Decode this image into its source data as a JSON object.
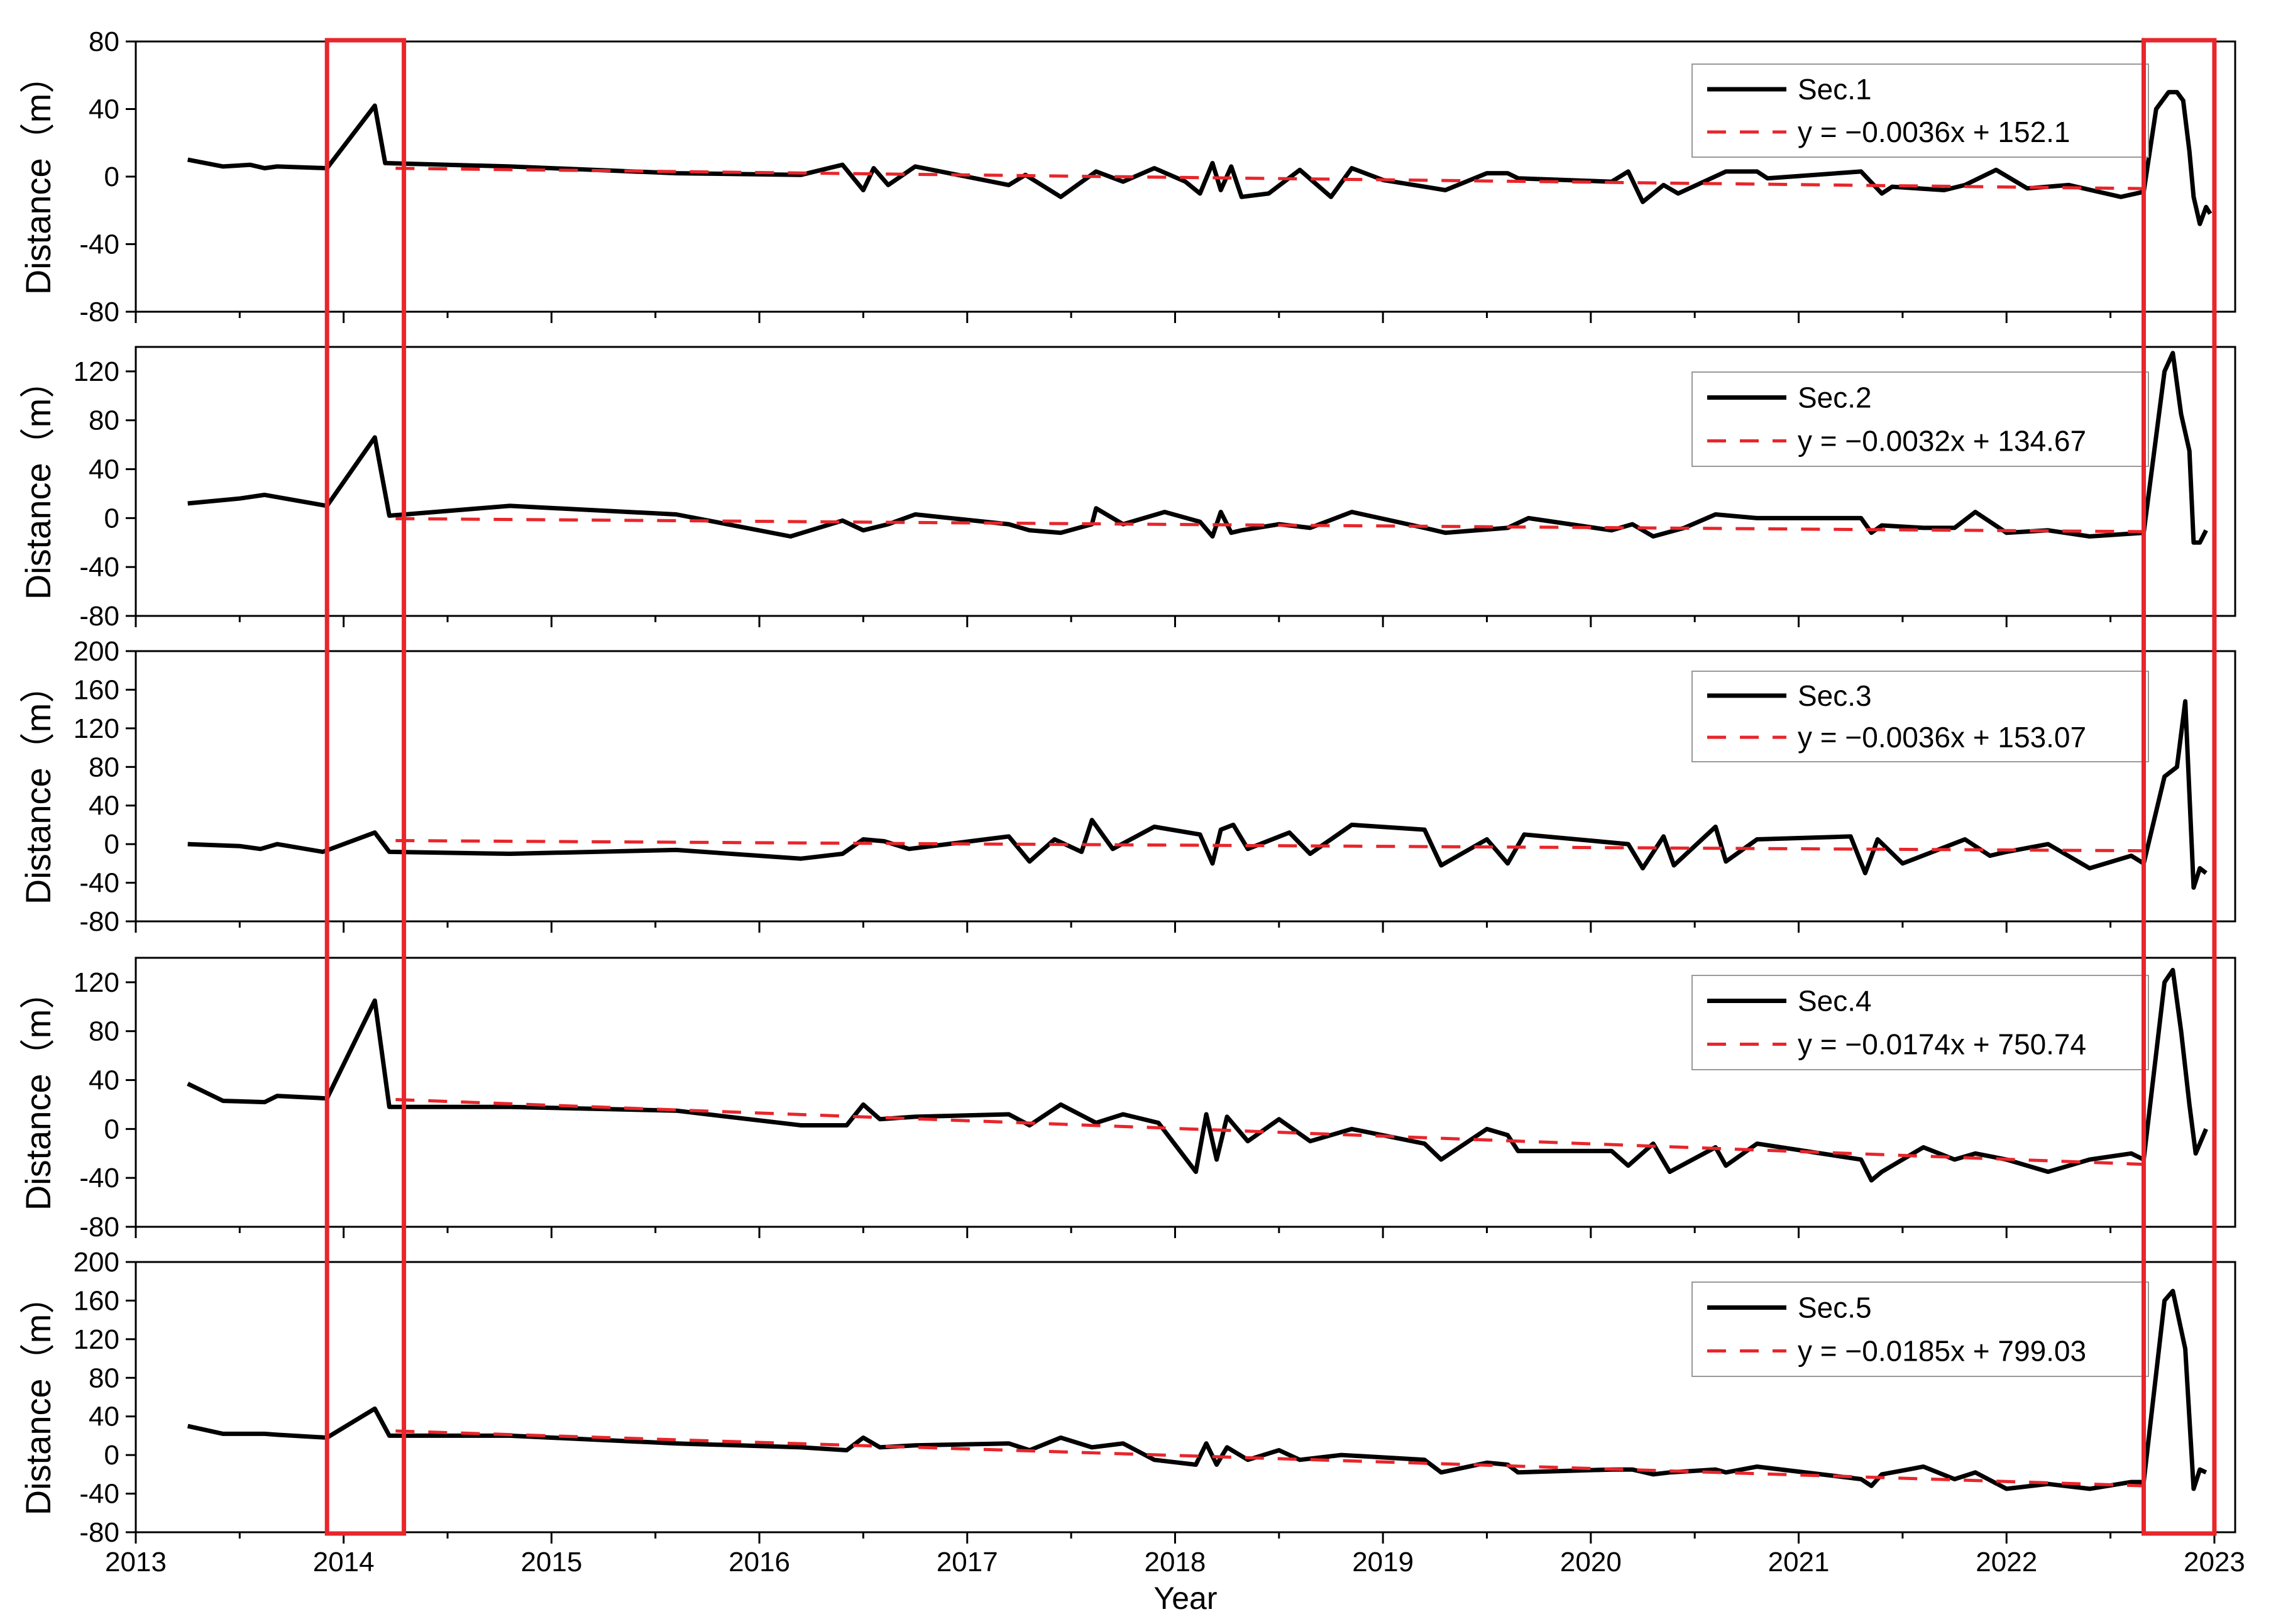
{
  "figure": {
    "xlabel": "Year",
    "ylabel": "Distance（m）",
    "highlight_color": "#e8262b",
    "line_color": "#000000",
    "trend_color": "#e8262b",
    "highlight_windows": [
      [
        2013.92,
        2014.29
      ],
      [
        2022.66,
        2023.0
      ]
    ]
  },
  "chart_data": [
    {
      "type": "line",
      "panel": 1,
      "xlim": [
        2013,
        2023.1
      ],
      "xticks": [
        "2013",
        "2014",
        "2015",
        "2016",
        "2017",
        "2018",
        "2019",
        "2020",
        "2021",
        "2022",
        "2023"
      ],
      "ylim": [
        -80,
        80
      ],
      "yticks": [
        "-80",
        "-40",
        "0",
        "40",
        "80"
      ],
      "grid": false,
      "legend_position": "top-right",
      "series": [
        {
          "name": "Sec.1",
          "style": "solid",
          "x": [
            2013.25,
            2013.42,
            2013.55,
            2013.62,
            2013.68,
            2013.92,
            2014.15,
            2014.2,
            2014.8,
            2015.6,
            2016.2,
            2016.4,
            2016.5,
            2016.55,
            2016.62,
            2016.75,
            2017.2,
            2017.28,
            2017.45,
            2017.62,
            2017.75,
            2017.9,
            2018.05,
            2018.12,
            2018.18,
            2018.22,
            2018.27,
            2018.32,
            2018.45,
            2018.6,
            2018.75,
            2018.85,
            2019.0,
            2019.2,
            2019.3,
            2019.5,
            2019.6,
            2019.65,
            2020.1,
            2020.18,
            2020.25,
            2020.35,
            2020.42,
            2020.65,
            2020.8,
            2020.85,
            2021.3,
            2021.4,
            2021.45,
            2021.7,
            2021.8,
            2021.95,
            2022.1,
            2022.3,
            2022.55,
            2022.66,
            2022.72,
            2022.78,
            2022.82,
            2022.85,
            2022.88,
            2022.9,
            2022.93,
            2022.96,
            2022.98
          ],
          "y": [
            10,
            6,
            7,
            5,
            6,
            5,
            42,
            8,
            6,
            2,
            1,
            7,
            -8,
            5,
            -5,
            6,
            -5,
            1,
            -12,
            3,
            -3,
            5,
            -3,
            -10,
            8,
            -8,
            6,
            -12,
            -10,
            4,
            -12,
            5,
            -2,
            -6,
            -8,
            2,
            2,
            -1,
            -3,
            3,
            -15,
            -5,
            -10,
            3,
            3,
            -1,
            3,
            -10,
            -6,
            -8,
            -5,
            4,
            -7,
            -5,
            -12,
            -9,
            40,
            50,
            50,
            45,
            15,
            -12,
            -28,
            -18,
            -22
          ]
        },
        {
          "name": "y = −0.0036x + 152.1",
          "style": "dashed",
          "x": [
            2014.25,
            2022.66
          ],
          "y": [
            4.9,
            -7.1
          ]
        }
      ]
    },
    {
      "type": "line",
      "panel": 2,
      "xlim": [
        2013,
        2023.1
      ],
      "xticks": [
        "2013",
        "2014",
        "2015",
        "2016",
        "2017",
        "2018",
        "2019",
        "2020",
        "2021",
        "2022",
        "2023"
      ],
      "ylim": [
        -80,
        140
      ],
      "yticks": [
        "-80",
        "-40",
        "0",
        "40",
        "80",
        "120"
      ],
      "grid": false,
      "legend_position": "top-right",
      "series": [
        {
          "name": "Sec.2",
          "style": "solid",
          "x": [
            2013.25,
            2013.5,
            2013.62,
            2013.92,
            2014.15,
            2014.22,
            2014.8,
            2015.6,
            2016.15,
            2016.4,
            2016.5,
            2016.62,
            2016.75,
            2017.2,
            2017.3,
            2017.45,
            2017.6,
            2017.62,
            2017.75,
            2017.95,
            2018.12,
            2018.18,
            2018.22,
            2018.27,
            2018.32,
            2018.5,
            2018.65,
            2018.85,
            2019.2,
            2019.3,
            2019.6,
            2019.7,
            2020.1,
            2020.2,
            2020.3,
            2020.45,
            2020.6,
            2020.8,
            2021.3,
            2021.35,
            2021.4,
            2021.6,
            2021.75,
            2021.85,
            2022.0,
            2022.2,
            2022.4,
            2022.66,
            2022.76,
            2022.8,
            2022.84,
            2022.88,
            2022.9,
            2022.93,
            2022.96
          ],
          "y": [
            12,
            16,
            19,
            10,
            66,
            2,
            10,
            3,
            -15,
            -2,
            -10,
            -5,
            3,
            -5,
            -10,
            -12,
            -5,
            8,
            -5,
            5,
            -3,
            -15,
            5,
            -12,
            -10,
            -5,
            -8,
            5,
            -8,
            -12,
            -8,
            0,
            -10,
            -5,
            -15,
            -8,
            3,
            0,
            0,
            -12,
            -6,
            -8,
            -8,
            5,
            -12,
            -10,
            -15,
            -12,
            120,
            135,
            85,
            55,
            -20,
            -20,
            -10
          ]
        },
        {
          "name": "y = −0.0032x + 134.67",
          "style": "dashed",
          "x": [
            2014.25,
            2022.66
          ],
          "y": [
            -0.42,
            -11.08
          ]
        }
      ]
    },
    {
      "type": "line",
      "panel": 3,
      "xlim": [
        2013,
        2023.1
      ],
      "xticks": [
        "2013",
        "2014",
        "2015",
        "2016",
        "2017",
        "2018",
        "2019",
        "2020",
        "2021",
        "2022",
        "2023"
      ],
      "ylim": [
        -80,
        200
      ],
      "yticks": [
        "-80",
        "-40",
        "0",
        "40",
        "80",
        "120",
        "160",
        "200"
      ],
      "grid": false,
      "legend_position": "top-right",
      "series": [
        {
          "name": "Sec.3",
          "style": "solid",
          "x": [
            2013.25,
            2013.5,
            2013.6,
            2013.68,
            2013.9,
            2014.15,
            2014.22,
            2014.8,
            2015.6,
            2016.2,
            2016.4,
            2016.5,
            2016.6,
            2016.72,
            2017.2,
            2017.3,
            2017.42,
            2017.55,
            2017.6,
            2017.7,
            2017.9,
            2018.12,
            2018.18,
            2018.22,
            2018.28,
            2018.35,
            2018.55,
            2018.65,
            2018.85,
            2019.2,
            2019.28,
            2019.5,
            2019.6,
            2019.68,
            2020.18,
            2020.25,
            2020.35,
            2020.4,
            2020.6,
            2020.65,
            2020.8,
            2021.25,
            2021.32,
            2021.38,
            2021.5,
            2021.8,
            2021.92,
            2022.0,
            2022.2,
            2022.4,
            2022.6,
            2022.66,
            2022.76,
            2022.82,
            2022.86,
            2022.9,
            2022.93,
            2022.96
          ],
          "y": [
            0,
            -2,
            -5,
            0,
            -8,
            12,
            -8,
            -10,
            -6,
            -15,
            -10,
            5,
            3,
            -5,
            8,
            -18,
            5,
            -8,
            25,
            -5,
            18,
            10,
            -20,
            15,
            20,
            -5,
            12,
            -10,
            20,
            15,
            -22,
            5,
            -20,
            10,
            0,
            -25,
            8,
            -22,
            18,
            -18,
            5,
            8,
            -30,
            5,
            -20,
            5,
            -12,
            -8,
            0,
            -25,
            -12,
            -20,
            70,
            80,
            148,
            -45,
            -25,
            -30
          ]
        },
        {
          "name": "y = −0.0036x + 153.07",
          "style": "dashed",
          "x": [
            2014.25,
            2022.66
          ],
          "y": [
            3.7,
            -6.9
          ]
        }
      ]
    },
    {
      "type": "line",
      "panel": 4,
      "xlim": [
        2013,
        2023.1
      ],
      "xticks": [
        "2013",
        "2014",
        "2015",
        "2016",
        "2017",
        "2018",
        "2019",
        "2020",
        "2021",
        "2022",
        "2023"
      ],
      "ylim": [
        -80,
        140
      ],
      "yticks": [
        "-80",
        "-40",
        "0",
        "40",
        "80",
        "120"
      ],
      "grid": false,
      "legend_position": "top-right",
      "series": [
        {
          "name": "Sec.4",
          "style": "solid",
          "x": [
            2013.25,
            2013.42,
            2013.62,
            2013.68,
            2013.92,
            2014.15,
            2014.22,
            2014.8,
            2015.6,
            2016.2,
            2016.42,
            2016.5,
            2016.58,
            2016.75,
            2017.2,
            2017.3,
            2017.45,
            2017.62,
            2017.75,
            2017.92,
            2018.1,
            2018.15,
            2018.2,
            2018.25,
            2018.35,
            2018.5,
            2018.65,
            2018.85,
            2019.2,
            2019.28,
            2019.5,
            2019.6,
            2019.65,
            2020.1,
            2020.18,
            2020.3,
            2020.38,
            2020.6,
            2020.65,
            2020.8,
            2021.3,
            2021.35,
            2021.4,
            2021.6,
            2021.75,
            2021.85,
            2022.0,
            2022.2,
            2022.4,
            2022.6,
            2022.66,
            2022.76,
            2022.8,
            2022.84,
            2022.88,
            2022.91,
            2022.96
          ],
          "y": [
            37,
            23,
            22,
            27,
            25,
            105,
            18,
            18,
            15,
            3,
            3,
            20,
            8,
            10,
            12,
            3,
            20,
            5,
            12,
            5,
            -35,
            12,
            -25,
            10,
            -10,
            8,
            -10,
            0,
            -12,
            -25,
            0,
            -5,
            -18,
            -18,
            -30,
            -12,
            -35,
            -15,
            -30,
            -12,
            -25,
            -42,
            -35,
            -15,
            -25,
            -20,
            -25,
            -35,
            -25,
            -20,
            -25,
            120,
            130,
            80,
            20,
            -20,
            0
          ]
        },
        {
          "name": "y = −0.0174x + 750.74",
          "style": "dashed",
          "x": [
            2014.25,
            2022.66
          ],
          "y": [
            24.1,
            -28.9
          ]
        }
      ]
    },
    {
      "type": "line",
      "panel": 5,
      "xlim": [
        2013,
        2023.1
      ],
      "xticks": [
        "2013",
        "2014",
        "2015",
        "2016",
        "2017",
        "2018",
        "2019",
        "2020",
        "2021",
        "2022",
        "2023"
      ],
      "ylim": [
        -80,
        200
      ],
      "yticks": [
        "-80",
        "-40",
        "0",
        "40",
        "80",
        "120",
        "160",
        "200"
      ],
      "grid": false,
      "legend_position": "top-right",
      "series": [
        {
          "name": "Sec.5",
          "style": "solid",
          "x": [
            2013.25,
            2013.42,
            2013.62,
            2013.68,
            2013.92,
            2014.15,
            2014.22,
            2014.8,
            2015.6,
            2016.2,
            2016.42,
            2016.5,
            2016.58,
            2016.75,
            2017.2,
            2017.3,
            2017.45,
            2017.6,
            2017.75,
            2017.9,
            2018.1,
            2018.15,
            2018.2,
            2018.25,
            2018.35,
            2018.5,
            2018.6,
            2018.8,
            2019.2,
            2019.28,
            2019.5,
            2019.6,
            2019.65,
            2020.1,
            2020.2,
            2020.3,
            2020.38,
            2020.6,
            2020.65,
            2020.8,
            2021.3,
            2021.35,
            2021.4,
            2021.6,
            2021.75,
            2021.85,
            2022.0,
            2022.2,
            2022.4,
            2022.6,
            2022.66,
            2022.76,
            2022.8,
            2022.86,
            2022.9,
            2022.93,
            2022.96
          ],
          "y": [
            30,
            22,
            22,
            21,
            18,
            48,
            20,
            20,
            12,
            8,
            5,
            18,
            8,
            10,
            12,
            5,
            18,
            8,
            12,
            -5,
            -10,
            12,
            -10,
            8,
            -5,
            5,
            -5,
            0,
            -5,
            -18,
            -8,
            -10,
            -18,
            -15,
            -15,
            -20,
            -18,
            -15,
            -18,
            -12,
            -25,
            -32,
            -20,
            -12,
            -25,
            -18,
            -35,
            -30,
            -35,
            -28,
            -28,
            160,
            170,
            110,
            -35,
            -15,
            -18
          ]
        },
        {
          "name": "y = −0.0185x + 799.03",
          "style": "dashed",
          "x": [
            2014.25,
            2022.66
          ],
          "y": [
            24.9,
            -31.9
          ]
        }
      ]
    }
  ]
}
